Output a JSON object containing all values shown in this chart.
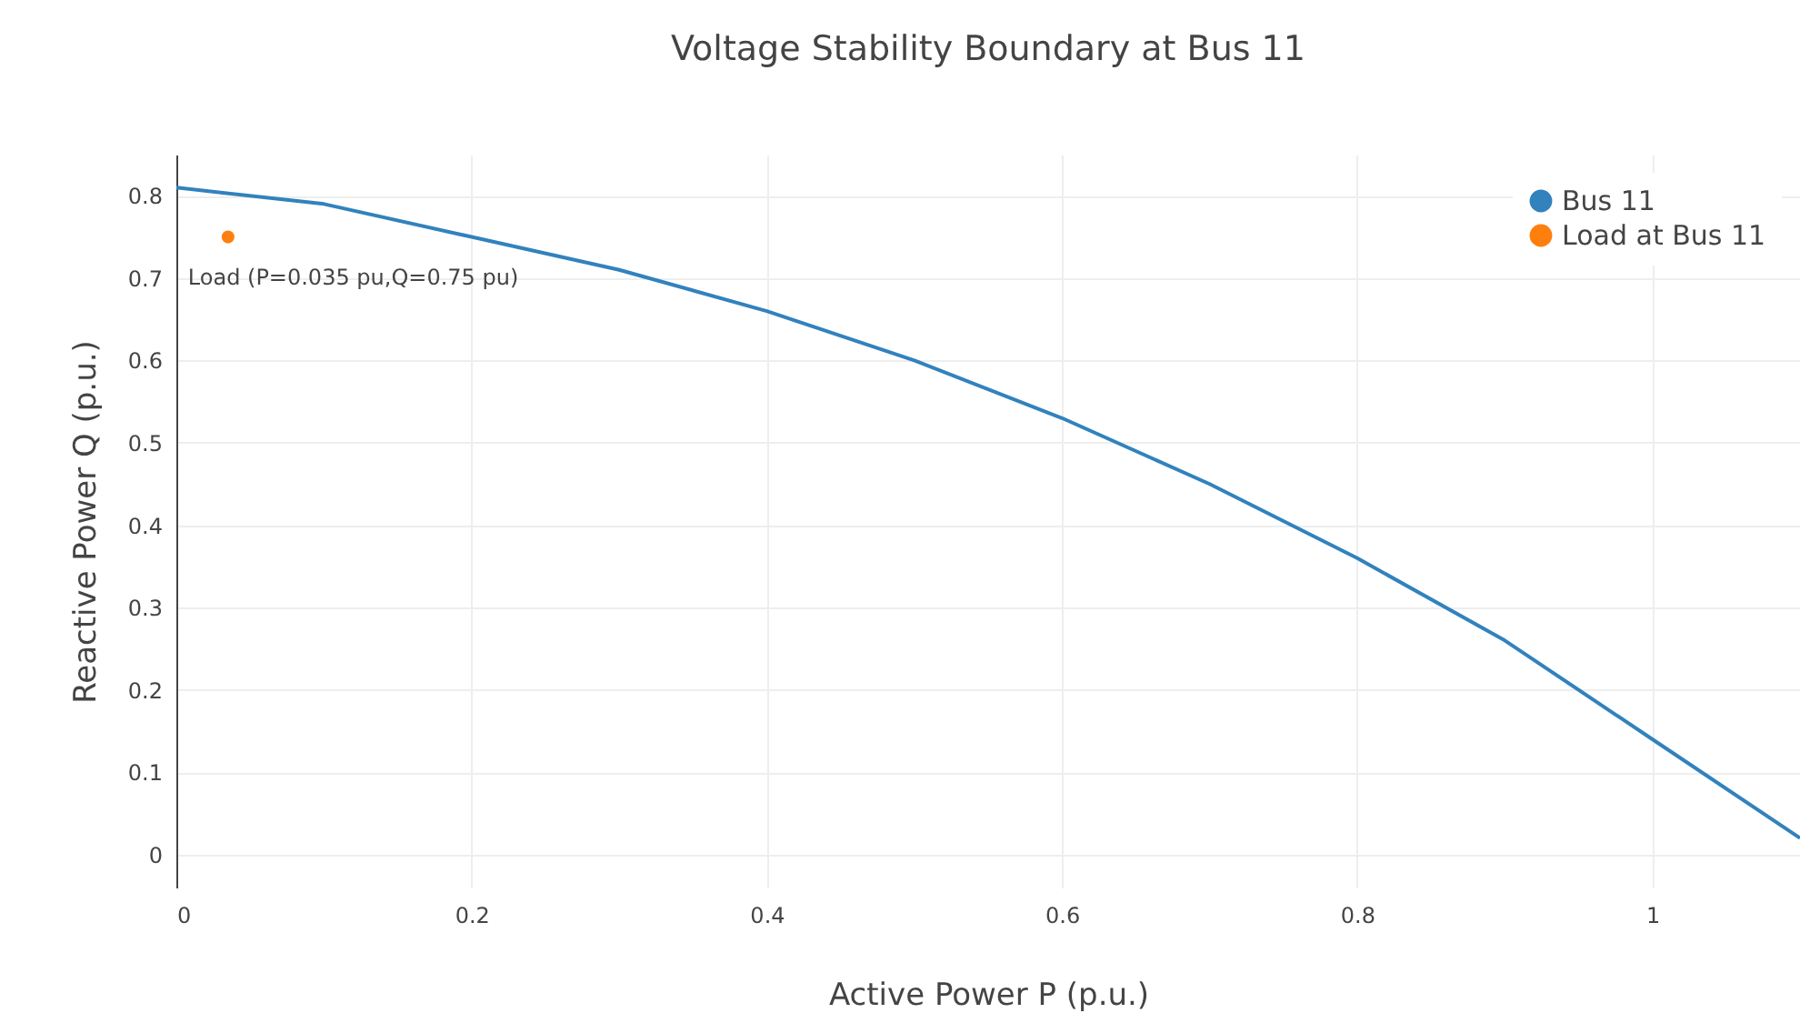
{
  "chart_data": {
    "type": "line",
    "title": "Voltage Stability Boundary at Bus 11",
    "xlabel": "Active Power P (p.u.)",
    "ylabel": "Reactive Power Q (p.u.)",
    "x": [
      0,
      0.1,
      0.2,
      0.3,
      0.4,
      0.5,
      0.6,
      0.7,
      0.8,
      0.9,
      1.0,
      1.1
    ],
    "series": [
      {
        "name": "Bus 11",
        "color": "#3182bd",
        "values": [
          0.81,
          0.79,
          0.75,
          0.71,
          0.66,
          0.6,
          0.53,
          0.45,
          0.36,
          0.26,
          0.14,
          0.02
        ]
      },
      {
        "name": "Load at Bus 11",
        "type": "scatter",
        "color": "#ff7f0e",
        "x": [
          0.035
        ],
        "values": [
          0.75
        ],
        "marker": "circle"
      }
    ],
    "annotations": [
      {
        "text": "Load (P=0.035 pu,Q=0.75 pu)",
        "x": 0.035,
        "y": 0.75
      }
    ],
    "xlim": [
      0,
      1.1
    ],
    "xticks": [
      0,
      0.2,
      0.4,
      0.6,
      0.8,
      1
    ],
    "ylim": [
      -0.04,
      0.85
    ],
    "yticks": [
      0,
      0.1,
      0.2,
      0.3,
      0.4,
      0.5,
      0.6,
      0.7,
      0.8
    ],
    "grid": true,
    "legend": "top right"
  }
}
